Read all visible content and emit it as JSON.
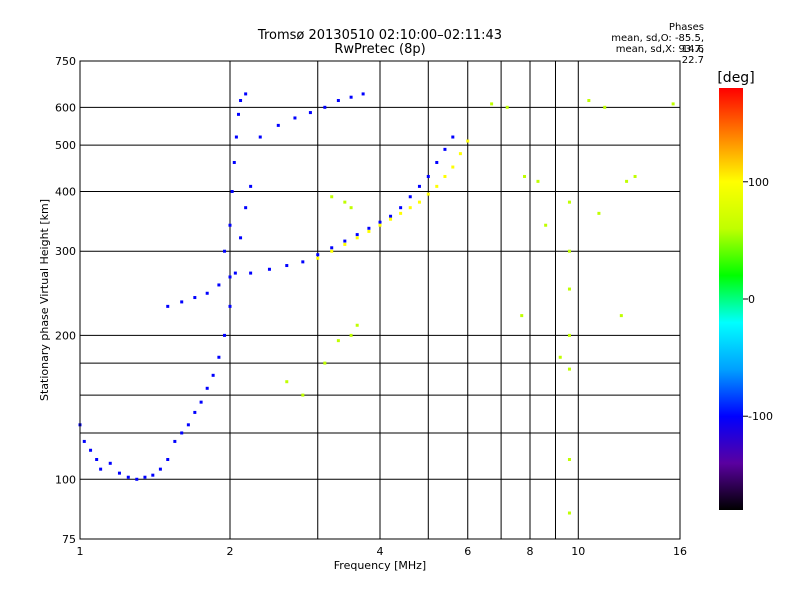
{
  "chart_data": {
    "type": "scatter",
    "title": "Tromsø 20130510 02:10:00–02:11:43",
    "subtitle": "RwPretec (8p)",
    "xlabel": "Frequency [MHz]",
    "ylabel": "Stationary phase Virtual Height [km]",
    "x_scale": "log",
    "y_scale": "log",
    "xlim": [
      1,
      16
    ],
    "ylim": [
      75,
      750
    ],
    "x_ticks": [
      1,
      2,
      4,
      6,
      8,
      10,
      16
    ],
    "y_ticks": [
      75,
      100,
      200,
      300,
      400,
      500,
      600,
      750
    ],
    "x_minor_gridlines": [
      3,
      5,
      7,
      9
    ],
    "y_minor_gridlines": [
      125,
      150,
      175
    ],
    "stats_header": "Phases",
    "stats_lines": [
      "mean, sd,O: -85.5, 14.6",
      "mean, sd,X: 93.7, 22.7"
    ],
    "colorbar": {
      "label": "[deg]",
      "range": [
        -180,
        180
      ],
      "ticks": [
        100,
        0,
        -100
      ],
      "colors": [
        "#000000",
        "#5a00a0",
        "#0000ff",
        "#00a0ff",
        "#00ffff",
        "#00ff00",
        "#c0ff00",
        "#ffff00",
        "#ff8000",
        "#ff0000"
      ]
    },
    "series": [
      {
        "description_of_trace": "O-mode lower trace",
        "phase_deg": -100,
        "points": [
          [
            1.0,
            130
          ],
          [
            1.02,
            120
          ],
          [
            1.05,
            115
          ],
          [
            1.08,
            110
          ],
          [
            1.1,
            105
          ],
          [
            1.15,
            108
          ],
          [
            1.2,
            103
          ],
          [
            1.25,
            101
          ],
          [
            1.3,
            100
          ],
          [
            1.35,
            101
          ],
          [
            1.4,
            102
          ],
          [
            1.45,
            105
          ],
          [
            1.5,
            110
          ],
          [
            1.55,
            120
          ],
          [
            1.6,
            125
          ],
          [
            1.65,
            130
          ],
          [
            1.7,
            138
          ],
          [
            1.75,
            145
          ],
          [
            1.8,
            155
          ],
          [
            1.85,
            165
          ],
          [
            1.9,
            180
          ],
          [
            1.95,
            200
          ],
          [
            2.0,
            230
          ],
          [
            2.05,
            270
          ],
          [
            2.1,
            320
          ],
          [
            2.15,
            370
          ],
          [
            2.2,
            410
          ]
        ]
      },
      {
        "description_of_trace": "O-mode F1 upper branch",
        "phase_deg": -95,
        "points": [
          [
            1.95,
            300
          ],
          [
            2.0,
            340
          ],
          [
            2.02,
            400
          ],
          [
            2.04,
            460
          ],
          [
            2.06,
            520
          ],
          [
            2.08,
            580
          ],
          [
            2.1,
            620
          ],
          [
            2.15,
            640
          ]
        ]
      },
      {
        "description_of_trace": "O-mode middle branch",
        "phase_deg": -100,
        "points": [
          [
            1.5,
            230
          ],
          [
            1.6,
            235
          ],
          [
            1.7,
            240
          ],
          [
            1.8,
            245
          ],
          [
            1.9,
            255
          ],
          [
            2.0,
            265
          ],
          [
            2.2,
            270
          ],
          [
            2.4,
            275
          ],
          [
            2.6,
            280
          ],
          [
            2.8,
            285
          ],
          [
            3.0,
            295
          ],
          [
            3.2,
            305
          ],
          [
            3.4,
            315
          ],
          [
            3.6,
            325
          ],
          [
            3.8,
            335
          ],
          [
            4.0,
            345
          ],
          [
            4.2,
            355
          ],
          [
            4.4,
            370
          ],
          [
            4.6,
            390
          ],
          [
            4.8,
            410
          ],
          [
            5.0,
            430
          ],
          [
            5.2,
            460
          ],
          [
            5.4,
            490
          ],
          [
            5.6,
            520
          ]
        ]
      },
      {
        "description_of_trace": "O-mode upper trace",
        "phase_deg": -90,
        "points": [
          [
            2.3,
            520
          ],
          [
            2.5,
            550
          ],
          [
            2.7,
            570
          ],
          [
            2.9,
            585
          ],
          [
            3.1,
            600
          ],
          [
            3.3,
            620
          ],
          [
            3.5,
            630
          ],
          [
            3.7,
            640
          ]
        ]
      },
      {
        "description_of_trace": "X-mode trace",
        "phase_deg": 90,
        "points": [
          [
            3.0,
            290
          ],
          [
            3.2,
            300
          ],
          [
            3.4,
            310
          ],
          [
            3.6,
            320
          ],
          [
            3.8,
            330
          ],
          [
            4.0,
            340
          ],
          [
            4.2,
            350
          ],
          [
            4.4,
            360
          ],
          [
            4.6,
            370
          ],
          [
            4.8,
            380
          ],
          [
            5.0,
            395
          ],
          [
            5.2,
            410
          ],
          [
            5.4,
            430
          ],
          [
            5.6,
            450
          ],
          [
            5.8,
            480
          ],
          [
            6.0,
            510
          ]
        ]
      },
      {
        "description_of_trace": "mixed scatter",
        "phase_deg": 60,
        "points": [
          [
            2.6,
            160
          ],
          [
            2.8,
            150
          ],
          [
            3.1,
            175
          ],
          [
            3.3,
            195
          ],
          [
            3.5,
            200
          ],
          [
            3.6,
            210
          ],
          [
            3.2,
            390
          ],
          [
            3.4,
            380
          ],
          [
            3.5,
            370
          ],
          [
            6.7,
            610
          ],
          [
            7.2,
            600
          ],
          [
            7.8,
            430
          ],
          [
            8.3,
            420
          ],
          [
            9.6,
            380
          ],
          [
            9.6,
            300
          ],
          [
            9.6,
            250
          ],
          [
            9.6,
            200
          ],
          [
            9.6,
            170
          ],
          [
            9.6,
            110
          ],
          [
            9.6,
            85
          ],
          [
            10.5,
            620
          ],
          [
            11.3,
            600
          ],
          [
            12.5,
            420
          ],
          [
            13.0,
            430
          ],
          [
            15.5,
            610
          ],
          [
            7.7,
            220
          ],
          [
            8.6,
            340
          ],
          [
            9.2,
            180
          ],
          [
            11.0,
            360
          ],
          [
            12.2,
            220
          ]
        ]
      }
    ]
  }
}
